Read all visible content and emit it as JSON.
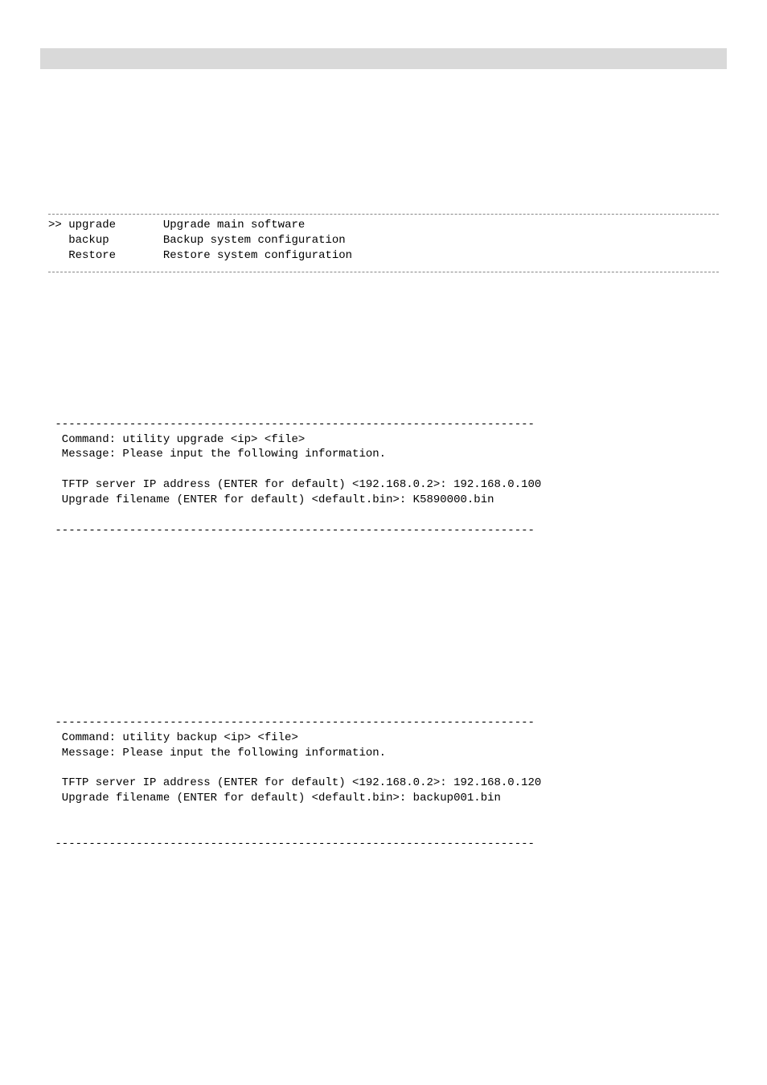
{
  "header_bar": {
    "background_color": "#d9d9d9"
  },
  "command_table": {
    "rows": [
      {
        "prefix": ">>",
        "cmd": "upgrade",
        "desc": "Upgrade main software"
      },
      {
        "prefix": "  ",
        "cmd": "backup",
        "desc": "Backup system configuration"
      },
      {
        "prefix": "  ",
        "cmd": "Restore",
        "desc": "Restore system configuration"
      }
    ]
  },
  "block1": {
    "dash_top": " -----------------------------------------------------------------------",
    "command": "  Command: utility upgrade <ip> <file>",
    "message": "  Message: Please input the following information.",
    "tftp": "  TFTP server IP address (ENTER for default) <192.168.0.2>: 192.168.0.100",
    "filename": "  Upgrade filename (ENTER for default) <default.bin>: K5890000.bin",
    "dash_bottom": " -----------------------------------------------------------------------"
  },
  "block2": {
    "dash_top": " -----------------------------------------------------------------------",
    "command": "  Command: utility backup <ip> <file>",
    "message": "  Message: Please input the following information.",
    "tftp": "  TFTP server IP address (ENTER for default) <192.168.0.2>: 192.168.0.120",
    "filename": "  Upgrade filename (ENTER for default) <default.bin>: backup001.bin",
    "dash_bottom": " -----------------------------------------------------------------------"
  }
}
